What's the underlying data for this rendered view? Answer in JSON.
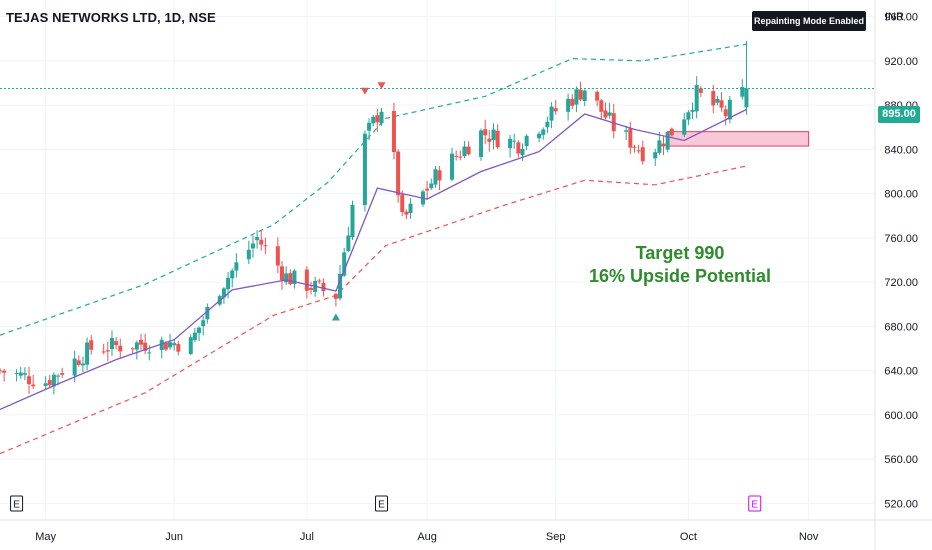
{
  "header": {
    "symbol": "TEJAS NETWORKS LTD, 1D, NSE",
    "badge": "Repainting Mode Enabled",
    "currency": "INR"
  },
  "annotation": {
    "line1": "Target 990",
    "line2": "16% Upside Potential"
  },
  "colors": {
    "up": "#26a69a",
    "down": "#ef5350",
    "ma": "#7e57c2",
    "upper_band": "#22ab94",
    "lower_band": "#ef5350",
    "target_text": "#2e8b2e",
    "zone_fill": "#f8c8d8",
    "zone_stroke": "#e23b5a",
    "earnings_future": "#d500f9"
  },
  "chart_data": {
    "type": "candlestick",
    "title": "TEJAS NETWORKS LTD, 1D, NSE",
    "y_range": [
      505,
      975
    ],
    "y_ticks": [
      520,
      560,
      600,
      640,
      680,
      720,
      760,
      800,
      840,
      880,
      920,
      960
    ],
    "y_tick_labels": [
      "520.00",
      "560.00",
      "600.00",
      "640.00",
      "680.00",
      "720.00",
      "760.00",
      "800.00",
      "840.00",
      "880.00",
      "920.00",
      "960.00"
    ],
    "x_ticks": [
      {
        "label": "May",
        "date": "2023-05-01"
      },
      {
        "label": "Jun",
        "date": "2023-06-01"
      },
      {
        "label": "Jul",
        "date": "2023-07-03"
      },
      {
        "label": "Aug",
        "date": "2023-08-01"
      },
      {
        "label": "Sep",
        "date": "2023-09-01"
      },
      {
        "label": "Oct",
        "date": "2023-10-03"
      },
      {
        "label": "Nov",
        "date": "2023-11-01"
      }
    ],
    "x_date_range": [
      "2023-04-20",
      "2023-11-17"
    ],
    "last_price": 895,
    "last_price_label": "895.00",
    "candle_anchors": [
      {
        "date": "2023-04-20",
        "close": 640
      },
      {
        "date": "2023-05-01",
        "close": 630
      },
      {
        "date": "2023-05-12",
        "close": 660
      },
      {
        "date": "2023-05-26",
        "close": 665
      },
      {
        "date": "2023-06-05",
        "close": 665
      },
      {
        "date": "2023-06-12",
        "close": 715
      },
      {
        "date": "2023-06-21",
        "close": 760
      },
      {
        "date": "2023-06-28",
        "close": 725
      },
      {
        "date": "2023-07-10",
        "close": 708
      },
      {
        "date": "2023-07-17",
        "close": 850
      },
      {
        "date": "2023-07-22",
        "close": 885
      },
      {
        "date": "2023-07-26",
        "close": 775
      },
      {
        "date": "2023-08-04",
        "close": 820
      },
      {
        "date": "2023-08-14",
        "close": 855
      },
      {
        "date": "2023-08-23",
        "close": 845
      },
      {
        "date": "2023-09-01",
        "close": 875
      },
      {
        "date": "2023-09-08",
        "close": 895
      },
      {
        "date": "2023-09-15",
        "close": 860
      },
      {
        "date": "2023-09-23",
        "close": 835
      },
      {
        "date": "2023-09-30",
        "close": 860
      },
      {
        "date": "2023-10-05",
        "close": 890
      },
      {
        "date": "2023-10-12",
        "close": 872
      },
      {
        "date": "2023-10-17",
        "close": 895
      }
    ],
    "moving_average": [
      {
        "date": "2023-04-20",
        "value": 605
      },
      {
        "date": "2023-05-04",
        "value": 628
      },
      {
        "date": "2023-05-18",
        "value": 650
      },
      {
        "date": "2023-06-01",
        "value": 668
      },
      {
        "date": "2023-06-15",
        "value": 713
      },
      {
        "date": "2023-06-28",
        "value": 722
      },
      {
        "date": "2023-07-10",
        "value": 712
      },
      {
        "date": "2023-07-20",
        "value": 805
      },
      {
        "date": "2023-08-01",
        "value": 795
      },
      {
        "date": "2023-08-14",
        "value": 820
      },
      {
        "date": "2023-08-28",
        "value": 838
      },
      {
        "date": "2023-09-08",
        "value": 872
      },
      {
        "date": "2023-09-20",
        "value": 858
      },
      {
        "date": "2023-10-02",
        "value": 848
      },
      {
        "date": "2023-10-17",
        "value": 876
      }
    ],
    "upper_band": [
      {
        "date": "2023-04-20",
        "value": 672
      },
      {
        "date": "2023-05-25",
        "value": 718
      },
      {
        "date": "2023-06-25",
        "value": 772
      },
      {
        "date": "2023-07-08",
        "value": 810
      },
      {
        "date": "2023-07-22",
        "value": 868
      },
      {
        "date": "2023-08-15",
        "value": 888
      },
      {
        "date": "2023-09-05",
        "value": 922
      },
      {
        "date": "2023-09-22",
        "value": 920
      },
      {
        "date": "2023-10-17",
        "value": 935
      }
    ],
    "lower_band": [
      {
        "date": "2023-04-20",
        "value": 565
      },
      {
        "date": "2023-05-25",
        "value": 620
      },
      {
        "date": "2023-06-25",
        "value": 690
      },
      {
        "date": "2023-07-10",
        "value": 708
      },
      {
        "date": "2023-07-22",
        "value": 753
      },
      {
        "date": "2023-08-20",
        "value": 790
      },
      {
        "date": "2023-09-08",
        "value": 812
      },
      {
        "date": "2023-09-25",
        "value": 808
      },
      {
        "date": "2023-10-17",
        "value": 825
      }
    ],
    "signals": [
      {
        "type": "buy",
        "date": "2023-07-10",
        "price": 688
      },
      {
        "type": "sell",
        "date": "2023-07-17",
        "price": 893
      },
      {
        "type": "sell",
        "date": "2023-07-21",
        "price": 898
      }
    ],
    "zone": {
      "from_date": "2023-09-28",
      "to_date": "2023-11-01",
      "top": 856,
      "bottom": 843
    },
    "earnings": [
      {
        "date": "2023-04-24",
        "label": "E",
        "future": false
      },
      {
        "date": "2023-07-21",
        "label": "E",
        "future": false
      },
      {
        "date": "2023-10-19",
        "label": "E",
        "future": true
      }
    ],
    "annotations": [
      "Target 990",
      "16% Upside Potential"
    ]
  }
}
